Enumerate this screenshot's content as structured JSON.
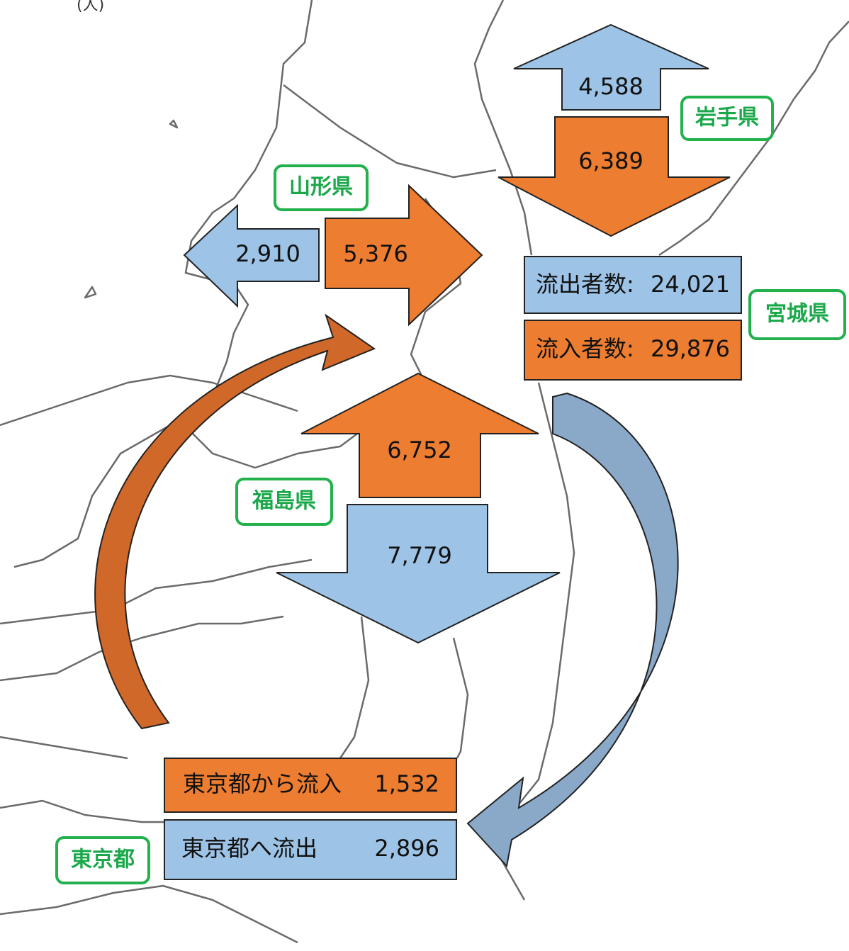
{
  "unit": "(人)",
  "prefectures": {
    "iwate": "岩手県",
    "yamagata": "山形県",
    "miyagi": "宮城県",
    "fukushima": "福島県",
    "tokyo": "東京都"
  },
  "flows": {
    "iwate_out": "4,588",
    "iwate_in": "6,389",
    "yamagata_out": "2,910",
    "yamagata_in": "5,376",
    "fukushima_in": "6,752",
    "fukushima_out": "7,779"
  },
  "miyagi": {
    "outflow_label": "流出者数:",
    "outflow": "24,021",
    "inflow_label": "流入者数:",
    "inflow": "29,876"
  },
  "tokyo": {
    "inflow_label": "東京都から流入",
    "inflow": "1,532",
    "outflow_label": "東京都へ流出",
    "outflow": "2,896"
  }
}
